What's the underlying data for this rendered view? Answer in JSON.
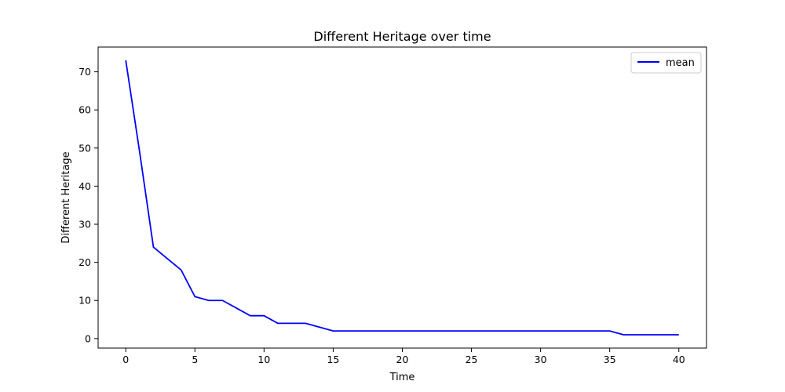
{
  "chart_data": {
    "type": "line",
    "title": "Different Heritage over time",
    "xlabel": "Time",
    "ylabel": "Different Heritage",
    "xlim": [
      -2,
      42
    ],
    "ylim": [
      -2.5,
      76.5
    ],
    "xticks": [
      0,
      5,
      10,
      15,
      20,
      25,
      30,
      35,
      40
    ],
    "yticks": [
      0,
      10,
      20,
      30,
      40,
      50,
      60,
      70
    ],
    "grid": false,
    "legend_position": "top-right",
    "series": [
      {
        "name": "mean",
        "color": "#0000ff",
        "x": [
          0,
          1,
          2,
          3,
          4,
          5,
          6,
          7,
          8,
          9,
          10,
          11,
          12,
          13,
          14,
          15,
          16,
          17,
          18,
          19,
          20,
          21,
          22,
          23,
          24,
          25,
          26,
          27,
          28,
          29,
          30,
          31,
          32,
          33,
          34,
          35,
          36,
          37,
          38,
          39,
          40
        ],
        "y": [
          73,
          49,
          24,
          21,
          18,
          11,
          10,
          10,
          8,
          6,
          6,
          4,
          4,
          4,
          3,
          2,
          2,
          2,
          2,
          2,
          2,
          2,
          2,
          2,
          2,
          2,
          2,
          2,
          2,
          2,
          2,
          2,
          2,
          2,
          2,
          2,
          1,
          1,
          1,
          1,
          1
        ]
      }
    ]
  }
}
